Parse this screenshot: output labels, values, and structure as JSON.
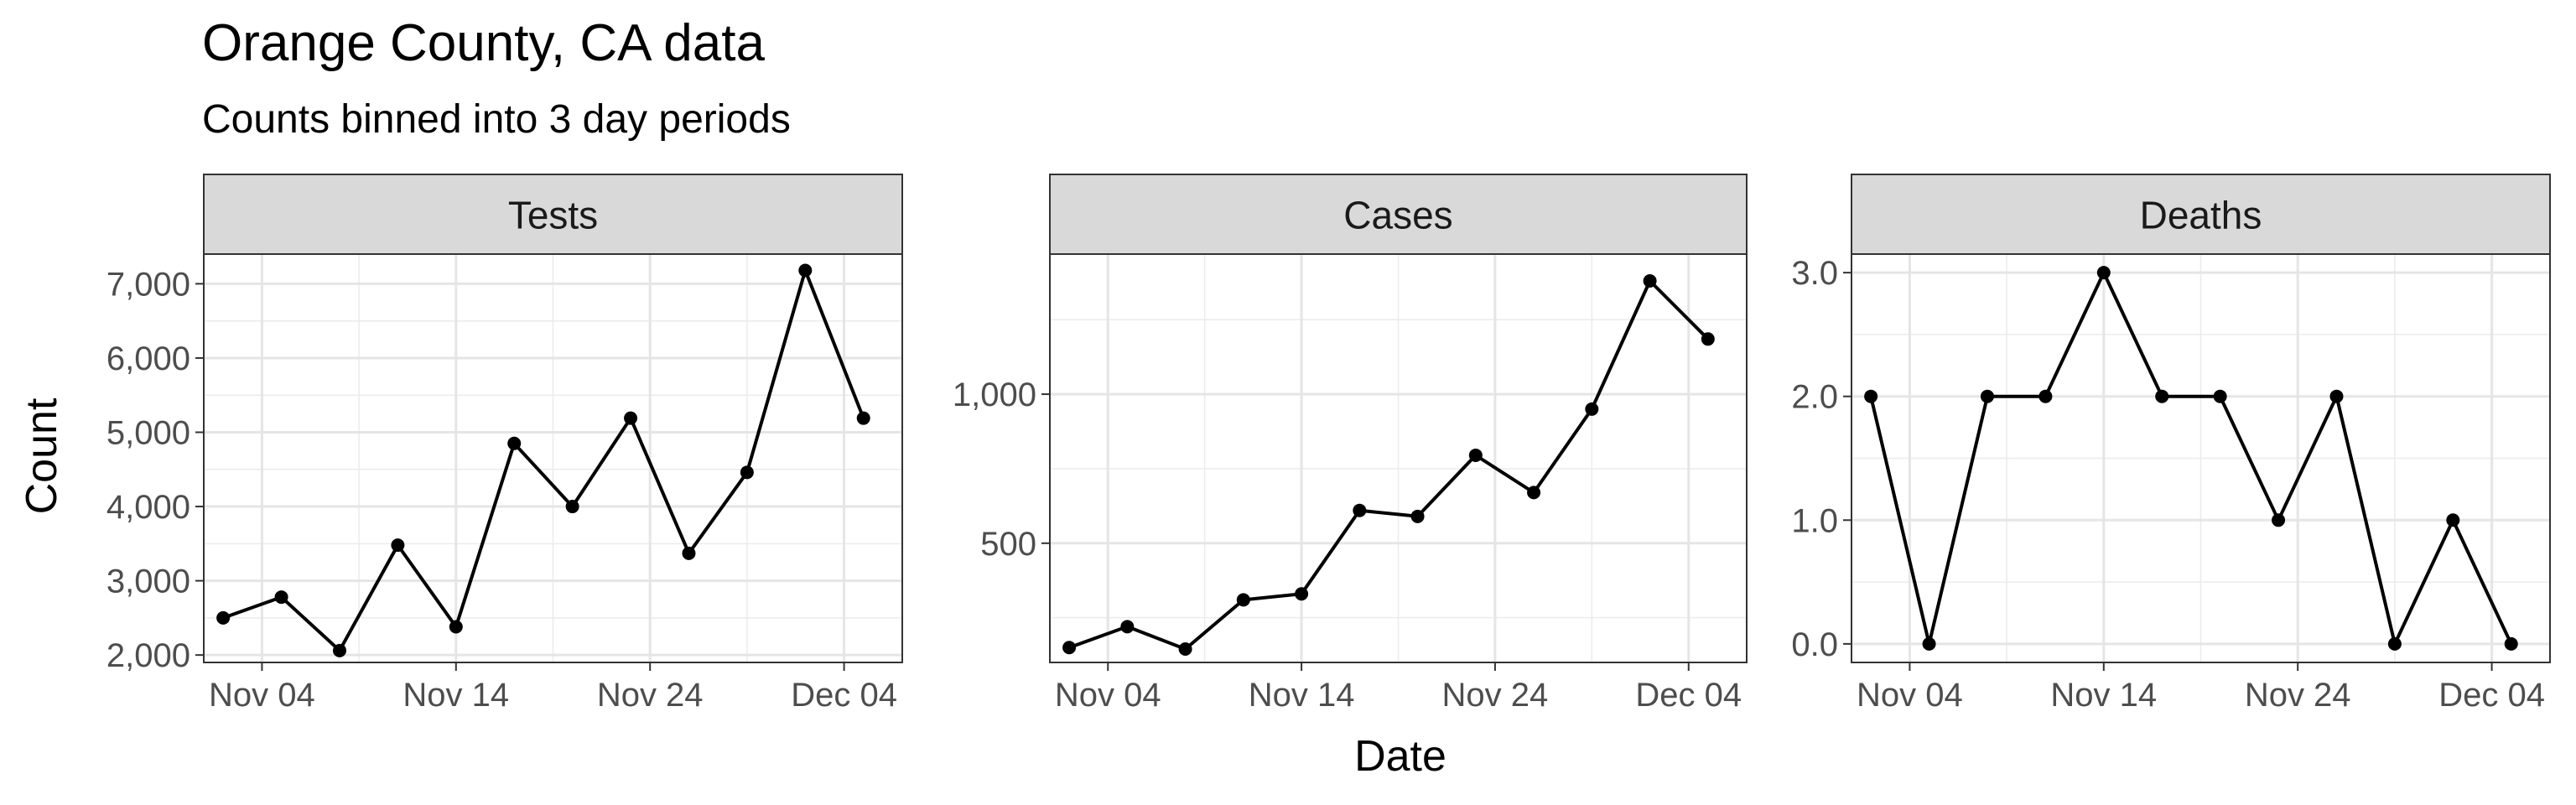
{
  "chart_data": {
    "type": "line",
    "title": "Orange County, CA data",
    "subtitle": "Counts binned into 3 day periods",
    "xlabel": "Date",
    "ylabel": "Count",
    "grid": true,
    "x_ticks": [
      "2020-11-04",
      "2020-11-14",
      "2020-11-24",
      "2020-12-04"
    ],
    "x_tick_labels": [
      "Nov 04",
      "Nov 14",
      "Nov 24",
      "Dec 04"
    ],
    "xlim": [
      "2020-11-01",
      "2020-12-07"
    ],
    "x": [
      "2020-11-02",
      "2020-11-05",
      "2020-11-08",
      "2020-11-11",
      "2020-11-14",
      "2020-11-17",
      "2020-11-20",
      "2020-11-23",
      "2020-11-26",
      "2020-11-29",
      "2020-12-02",
      "2020-12-05"
    ],
    "panels": [
      {
        "name": "Tests",
        "values": [
          2500,
          2780,
          2060,
          3480,
          2380,
          4850,
          4000,
          5190,
          3370,
          4460,
          7180,
          5190
        ],
        "ylim": [
          1900,
          7400
        ],
        "y_ticks": [
          2000,
          3000,
          4000,
          5000,
          6000,
          7000
        ],
        "y_tick_labels": [
          "2,000",
          "3,000",
          "4,000",
          "5,000",
          "6,000",
          "7,000"
        ]
      },
      {
        "name": "Cases",
        "values": [
          150,
          220,
          145,
          310,
          330,
          610,
          590,
          795,
          670,
          950,
          1380,
          1185
        ],
        "ylim": [
          100,
          1470
        ],
        "y_ticks": [
          500,
          1000
        ],
        "y_tick_labels": [
          "500",
          "1,000"
        ]
      },
      {
        "name": "Deaths",
        "values": [
          2,
          0,
          2,
          2,
          3,
          2,
          2,
          1,
          2,
          0,
          1,
          0
        ],
        "ylim": [
          -0.15,
          3.15
        ],
        "y_ticks": [
          0,
          1,
          2,
          3
        ],
        "y_tick_labels": [
          "0.0",
          "1.0",
          "2.0",
          "3.0"
        ]
      }
    ]
  }
}
